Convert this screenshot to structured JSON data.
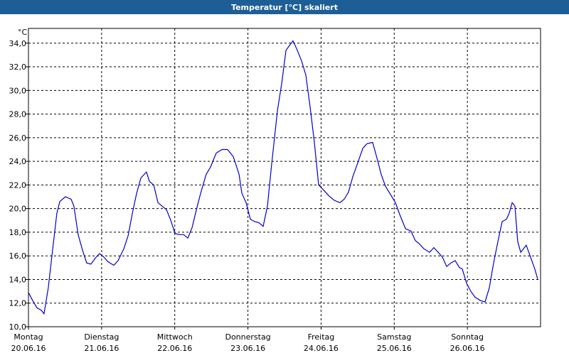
{
  "chart_data": {
    "type": "line",
    "title": "Temperatur [°C] skaliert",
    "y_unit": "°C",
    "xlim": [
      0,
      168
    ],
    "ylim": [
      10,
      35.25
    ],
    "grid": true,
    "xticks": [
      {
        "value": 0,
        "label": [
          "Montag",
          "20.06.16"
        ]
      },
      {
        "value": 24,
        "label": [
          "Dienstag",
          "21.06.16"
        ]
      },
      {
        "value": 48,
        "label": [
          "Mittwoch",
          "22.06.16"
        ]
      },
      {
        "value": 72,
        "label": [
          "Donnerstag",
          "23.06.16"
        ]
      },
      {
        "value": 96,
        "label": [
          "Freitag",
          "24.06.16"
        ]
      },
      {
        "value": 120,
        "label": [
          "Samstag",
          "25.06.16"
        ]
      },
      {
        "value": 144,
        "label": [
          "Sonntag",
          "26.06.16"
        ]
      }
    ],
    "yticks": [
      {
        "value": 10,
        "label": "10,0"
      },
      {
        "value": 12,
        "label": "12,0"
      },
      {
        "value": 14,
        "label": "14,0"
      },
      {
        "value": 16,
        "label": "16,0"
      },
      {
        "value": 18,
        "label": "18,0"
      },
      {
        "value": 20,
        "label": "20,0"
      },
      {
        "value": 22,
        "label": "22,0"
      },
      {
        "value": 24,
        "label": "24,0"
      },
      {
        "value": 26,
        "label": "26,0"
      },
      {
        "value": 28,
        "label": "28,0"
      },
      {
        "value": 30,
        "label": "30,0"
      },
      {
        "value": 32,
        "label": "32,0"
      },
      {
        "value": 34,
        "label": "34,0"
      }
    ],
    "series": [
      {
        "color": "#0000cc",
        "x": [
          0,
          1.2,
          2.8,
          4.2,
          5.1,
          6.5,
          7.7,
          9.3,
          10.3,
          12.1,
          14.0,
          14.9,
          16.3,
          17.7,
          19.1,
          20.5,
          21.9,
          23.3,
          24.7,
          26.1,
          28.0,
          29.4,
          31.3,
          32.7,
          34.1,
          35.5,
          36.9,
          38.7,
          39.7,
          41.1,
          42.5,
          43.9,
          45.3,
          46.7,
          48.1,
          49.5,
          50.9,
          52.3,
          53.7,
          55.1,
          56.5,
          58.3,
          59.7,
          61.6,
          63.5,
          65.3,
          67.2,
          69.1,
          70.0,
          71.4,
          72.8,
          74.2,
          75.6,
          77.0,
          78.4,
          79.8,
          81.7,
          83.1,
          84.5,
          85.9,
          86.8,
          88.2,
          89.6,
          91.0,
          92.4,
          93.8,
          95.2,
          97.1,
          98.5,
          100.3,
          102.2,
          103.6,
          105.0,
          106.4,
          107.8,
          109.7,
          111.1,
          112.9,
          114.3,
          115.7,
          117.1,
          119.0,
          120.4,
          121.8,
          123.7,
          125.5,
          126.9,
          128.3,
          129.7,
          131.6,
          133.0,
          134.4,
          135.8,
          137.2,
          138.6,
          140.0,
          141.4,
          142.3,
          143.7,
          145.1,
          146.5,
          148.4,
          149.8,
          151.2,
          152.6,
          154.0,
          155.4,
          156.8,
          157.7,
          158.7,
          159.6,
          160.5,
          161.5,
          162.4,
          163.3,
          164.7,
          166.1,
          167.1
        ],
        "values": [
          12.9,
          12.3,
          11.6,
          11.4,
          11.1,
          13.3,
          16.0,
          19.6,
          20.6,
          21.0,
          20.8,
          20.2,
          17.8,
          16.5,
          15.4,
          15.3,
          15.8,
          16.2,
          15.9,
          15.5,
          15.2,
          15.6,
          16.6,
          17.7,
          19.6,
          21.3,
          22.6,
          23.1,
          22.3,
          22.0,
          20.5,
          20.2,
          19.9,
          19.0,
          17.9,
          17.8,
          17.8,
          17.5,
          18.4,
          19.9,
          21.3,
          22.9,
          23.5,
          24.7,
          25.0,
          25.0,
          24.4,
          22.9,
          21.3,
          20.5,
          19.1,
          18.9,
          18.8,
          18.5,
          20.2,
          23.8,
          28.3,
          30.6,
          33.4,
          33.9,
          34.2,
          33.4,
          32.5,
          31.3,
          28.6,
          25.6,
          22.0,
          21.5,
          21.1,
          20.7,
          20.5,
          20.8,
          21.4,
          22.7,
          23.7,
          25.1,
          25.5,
          25.6,
          24.3,
          22.9,
          21.9,
          21.1,
          20.5,
          19.5,
          18.3,
          18.1,
          17.3,
          17.0,
          16.6,
          16.3,
          16.7,
          16.3,
          15.9,
          15.1,
          15.4,
          15.6,
          15.0,
          14.9,
          13.7,
          13.0,
          12.5,
          12.2,
          12.1,
          13.3,
          15.4,
          17.2,
          18.9,
          19.1,
          19.6,
          20.5,
          20.2,
          17.2,
          16.3,
          16.6,
          16.9,
          15.9,
          14.9,
          14.0
        ]
      }
    ]
  }
}
